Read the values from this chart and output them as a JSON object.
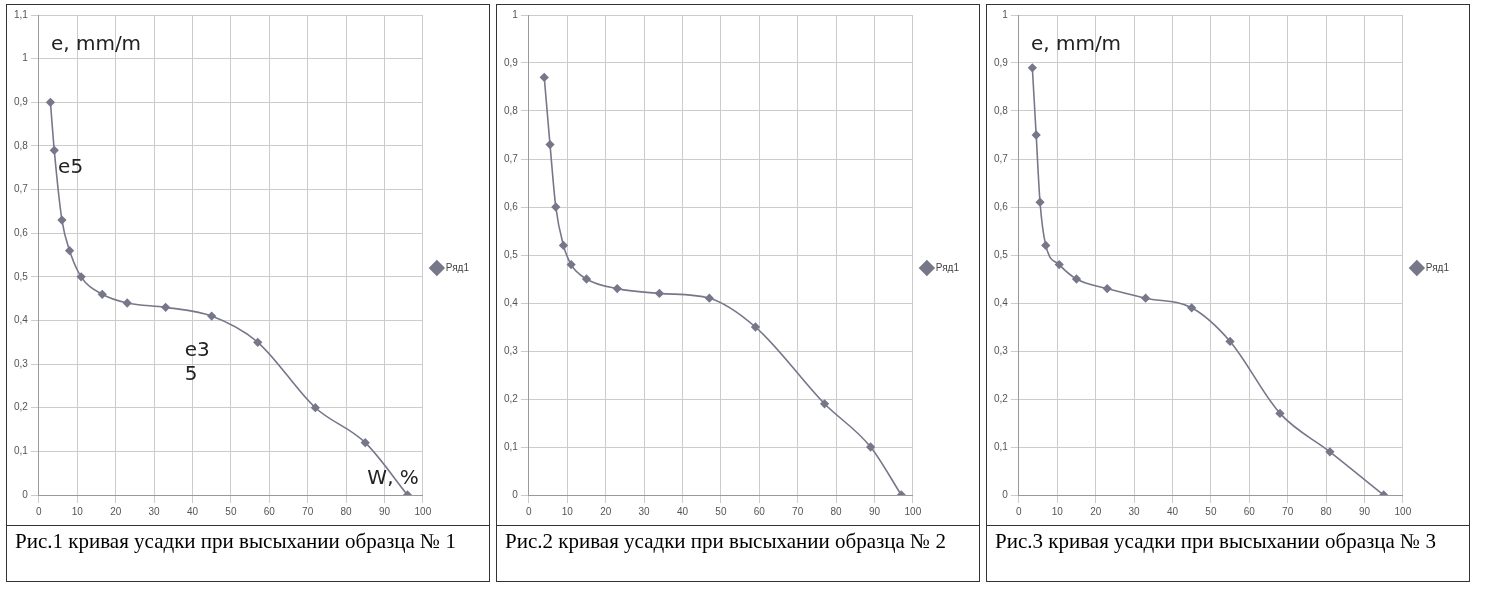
{
  "chart_data": [
    {
      "type": "line",
      "title": "Рис.1 кривая усадки при высыхании образца № 1",
      "ylabel": "e, mm/m",
      "xlabel": "W, %",
      "xlim": [
        0,
        100
      ],
      "xticks": [
        0,
        10,
        20,
        30,
        40,
        50,
        60,
        70,
        80,
        90,
        100
      ],
      "ylim": [
        0,
        1.1
      ],
      "yticks": [
        {
          "value": 0,
          "label": "0"
        },
        {
          "value": 0.1,
          "label": "0,1"
        },
        {
          "value": 0.2,
          "label": "0,2"
        },
        {
          "value": 0.3,
          "label": "0,3"
        },
        {
          "value": 0.4,
          "label": "0,4"
        },
        {
          "value": 0.5,
          "label": "0,5"
        },
        {
          "value": 0.6,
          "label": "0,6"
        },
        {
          "value": 0.7,
          "label": "0,7"
        },
        {
          "value": 0.8,
          "label": "0,8"
        },
        {
          "value": 0.9,
          "label": "0,9"
        },
        {
          "value": 1,
          "label": "1"
        },
        {
          "value": 1.1,
          "label": "1,1"
        }
      ],
      "grid": true,
      "legend": "right",
      "marker": "diamond",
      "annotations": [
        {
          "text": "e5",
          "x": 5,
          "y": 0.75
        },
        "e3 5"
      ],
      "series": [
        {
          "name": "Ряд1",
          "color": "#77778a",
          "x": [
            3,
            4,
            6,
            8,
            11,
            16.5,
            23,
            33,
            45,
            57,
            72,
            85,
            96
          ],
          "values": [
            0.9,
            0.79,
            0.63,
            0.56,
            0.5,
            0.46,
            0.44,
            0.43,
            0.41,
            0.35,
            0.2,
            0.12,
            0.0
          ]
        }
      ]
    },
    {
      "type": "line",
      "title": "Рис.2 кривая усадки при высыхании образца № 2",
      "xlim": [
        0,
        100
      ],
      "xticks": [
        0,
        10,
        20,
        30,
        40,
        50,
        60,
        70,
        80,
        90,
        100
      ],
      "ylim": [
        0,
        1
      ],
      "yticks": [
        {
          "value": 0,
          "label": "0"
        },
        {
          "value": 0.1,
          "label": "0,1"
        },
        {
          "value": 0.2,
          "label": "0,2"
        },
        {
          "value": 0.3,
          "label": "0,3"
        },
        {
          "value": 0.4,
          "label": "0,4"
        },
        {
          "value": 0.5,
          "label": "0,5"
        },
        {
          "value": 0.6,
          "label": "0,6"
        },
        {
          "value": 0.7,
          "label": "0,7"
        },
        {
          "value": 0.8,
          "label": "0,8"
        },
        {
          "value": 0.9,
          "label": "0,9"
        },
        {
          "value": 1,
          "label": "1"
        }
      ],
      "grid": true,
      "legend": "right",
      "marker": "diamond",
      "series": [
        {
          "name": "Ряд1",
          "color": "#77778a",
          "x": [
            4,
            5.5,
            7,
            9,
            11,
            15,
            23,
            34,
            47,
            59,
            77,
            89,
            97
          ],
          "values": [
            0.87,
            0.73,
            0.6,
            0.52,
            0.48,
            0.45,
            0.43,
            0.42,
            0.41,
            0.35,
            0.19,
            0.1,
            0.0
          ]
        }
      ]
    },
    {
      "type": "line",
      "title": "Рис.3 кривая усадки при высыхании образца № 3",
      "ylabel": "e, mm/m",
      "xlim": [
        0,
        100
      ],
      "xticks": [
        0,
        10,
        20,
        30,
        40,
        50,
        60,
        70,
        80,
        90,
        100
      ],
      "ylim": [
        0,
        1
      ],
      "yticks": [
        {
          "value": 0,
          "label": "0"
        },
        {
          "value": 0.1,
          "label": "0,1"
        },
        {
          "value": 0.2,
          "label": "0,2"
        },
        {
          "value": 0.3,
          "label": "0,3"
        },
        {
          "value": 0.4,
          "label": "0,4"
        },
        {
          "value": 0.5,
          "label": "0,5"
        },
        {
          "value": 0.6,
          "label": "0,6"
        },
        {
          "value": 0.7,
          "label": "0,7"
        },
        {
          "value": 0.8,
          "label": "0,8"
        },
        {
          "value": 0.9,
          "label": "0,9"
        },
        {
          "value": 1,
          "label": "1"
        }
      ],
      "grid": true,
      "legend": "right",
      "marker": "diamond",
      "series": [
        {
          "name": "Ряд1",
          "color": "#77778a",
          "x": [
            3.5,
            4.5,
            5.5,
            7,
            10.5,
            15,
            23,
            33,
            45,
            55,
            68,
            81,
            95
          ],
          "values": [
            0.89,
            0.75,
            0.61,
            0.52,
            0.48,
            0.45,
            0.43,
            0.41,
            0.39,
            0.32,
            0.17,
            0.09,
            0.0
          ]
        }
      ]
    }
  ]
}
